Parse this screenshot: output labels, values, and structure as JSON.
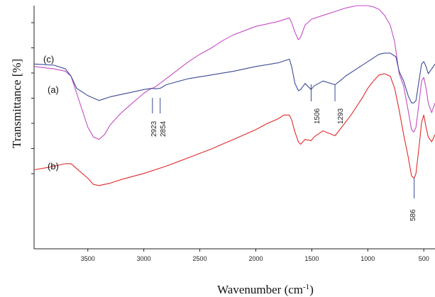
{
  "chart_data": {
    "type": "line",
    "xlabel": "Wavenumber (cm-1)",
    "xlabel_base": "Wavenumber (cm",
    "xlabel_sup": "-1",
    "xlabel_end": ")",
    "ylabel": "Transmittance [%]",
    "x_reversed": true,
    "xlim": [
      3980,
      400
    ],
    "ylim": [
      0,
      100
    ],
    "x_ticks": [
      3500,
      3000,
      2500,
      2000,
      1500,
      1000,
      500
    ],
    "y_ticks_count": 7,
    "grid": false,
    "series": [
      {
        "name": "(c)",
        "color": "#c44cc4",
        "points": [
          [
            3980,
            75
          ],
          [
            3800,
            74
          ],
          [
            3700,
            73
          ],
          [
            3650,
            71
          ],
          [
            3600,
            64
          ],
          [
            3550,
            57
          ],
          [
            3500,
            50
          ],
          [
            3450,
            46
          ],
          [
            3400,
            45
          ],
          [
            3350,
            47
          ],
          [
            3300,
            51
          ],
          [
            3200,
            56
          ],
          [
            3100,
            60
          ],
          [
            3000,
            64
          ],
          [
            2950,
            65.5
          ],
          [
            2900,
            66.5
          ],
          [
            2800,
            70
          ],
          [
            2700,
            73.5
          ],
          [
            2600,
            77
          ],
          [
            2500,
            80
          ],
          [
            2400,
            82.5
          ],
          [
            2350,
            84
          ],
          [
            2300,
            85.5
          ],
          [
            2200,
            88
          ],
          [
            2000,
            91.5
          ],
          [
            1800,
            93.5
          ],
          [
            1700,
            95
          ],
          [
            1680,
            93
          ],
          [
            1650,
            89
          ],
          [
            1620,
            86
          ],
          [
            1600,
            87
          ],
          [
            1560,
            92
          ],
          [
            1500,
            94.5
          ],
          [
            1400,
            96
          ],
          [
            1300,
            97.5
          ],
          [
            1200,
            99
          ],
          [
            1100,
            100
          ],
          [
            1000,
            100
          ],
          [
            950,
            99.5
          ],
          [
            900,
            98.5
          ],
          [
            850,
            96
          ],
          [
            800,
            92
          ],
          [
            760,
            85
          ],
          [
            720,
            72
          ],
          [
            680,
            67
          ],
          [
            640,
            57
          ],
          [
            610,
            49
          ],
          [
            590,
            48
          ],
          [
            570,
            50
          ],
          [
            540,
            61
          ],
          [
            520,
            69
          ],
          [
            500,
            70.5
          ],
          [
            480,
            66
          ],
          [
            460,
            60
          ],
          [
            430,
            56
          ],
          [
            400,
            60
          ]
        ]
      },
      {
        "name": "(a)",
        "color": "#3c4a96",
        "points": [
          [
            3980,
            76
          ],
          [
            3800,
            75.5
          ],
          [
            3700,
            74
          ],
          [
            3650,
            71
          ],
          [
            3600,
            66
          ],
          [
            3500,
            63
          ],
          [
            3400,
            61
          ],
          [
            3300,
            62.5
          ],
          [
            3200,
            63.5
          ],
          [
            3100,
            64.5
          ],
          [
            3000,
            65.5
          ],
          [
            2923,
            66
          ],
          [
            2900,
            65.8
          ],
          [
            2854,
            66
          ],
          [
            2800,
            67.5
          ],
          [
            2600,
            70
          ],
          [
            2400,
            71.5
          ],
          [
            2200,
            73
          ],
          [
            2000,
            75
          ],
          [
            1800,
            76.5
          ],
          [
            1700,
            78
          ],
          [
            1680,
            75
          ],
          [
            1650,
            68
          ],
          [
            1620,
            65
          ],
          [
            1600,
            65.5
          ],
          [
            1560,
            68
          ],
          [
            1506,
            65.5
          ],
          [
            1480,
            67
          ],
          [
            1400,
            69
          ],
          [
            1293,
            67.5
          ],
          [
            1250,
            69
          ],
          [
            1200,
            71
          ],
          [
            1100,
            74
          ],
          [
            1000,
            77
          ],
          [
            950,
            78.5
          ],
          [
            900,
            80
          ],
          [
            850,
            80.5
          ],
          [
            800,
            80.5
          ],
          [
            750,
            79
          ],
          [
            720,
            73
          ],
          [
            680,
            69
          ],
          [
            640,
            63
          ],
          [
            610,
            60
          ],
          [
            590,
            60
          ],
          [
            570,
            61
          ],
          [
            540,
            70
          ],
          [
            520,
            76
          ],
          [
            500,
            77
          ],
          [
            480,
            75
          ],
          [
            460,
            72
          ],
          [
            430,
            74
          ],
          [
            400,
            76
          ]
        ]
      },
      {
        "name": "(b)",
        "color": "#e02a2a",
        "points": [
          [
            3980,
            32.5
          ],
          [
            3850,
            33.5
          ],
          [
            3700,
            35
          ],
          [
            3650,
            35
          ],
          [
            3600,
            33
          ],
          [
            3500,
            29
          ],
          [
            3450,
            26.5
          ],
          [
            3400,
            26
          ],
          [
            3300,
            27
          ],
          [
            3200,
            28.5
          ],
          [
            3000,
            31
          ],
          [
            2800,
            34
          ],
          [
            2600,
            37.5
          ],
          [
            2400,
            41
          ],
          [
            2300,
            43
          ],
          [
            2200,
            45
          ],
          [
            2000,
            49
          ],
          [
            1900,
            51.5
          ],
          [
            1800,
            53.5
          ],
          [
            1750,
            55
          ],
          [
            1700,
            55
          ],
          [
            1680,
            53
          ],
          [
            1650,
            48
          ],
          [
            1620,
            44
          ],
          [
            1600,
            43
          ],
          [
            1560,
            45
          ],
          [
            1506,
            44.5
          ],
          [
            1480,
            46
          ],
          [
            1400,
            48.5
          ],
          [
            1293,
            46.5
          ],
          [
            1250,
            49
          ],
          [
            1150,
            55
          ],
          [
            1050,
            62
          ],
          [
            1000,
            66
          ],
          [
            950,
            69
          ],
          [
            900,
            71.5
          ],
          [
            850,
            72
          ],
          [
            800,
            71
          ],
          [
            760,
            66
          ],
          [
            720,
            57
          ],
          [
            680,
            47
          ],
          [
            640,
            38
          ],
          [
            610,
            30
          ],
          [
            586,
            29
          ],
          [
            570,
            31
          ],
          [
            540,
            43
          ],
          [
            520,
            52
          ],
          [
            500,
            55
          ],
          [
            480,
            50
          ],
          [
            460,
            46
          ],
          [
            430,
            44
          ],
          [
            400,
            47
          ]
        ]
      }
    ],
    "curve_labels": [
      "(c)",
      "(a)",
      "(b)"
    ],
    "annotations": [
      "2923",
      "2854",
      "1506",
      "1293",
      "586"
    ]
  }
}
